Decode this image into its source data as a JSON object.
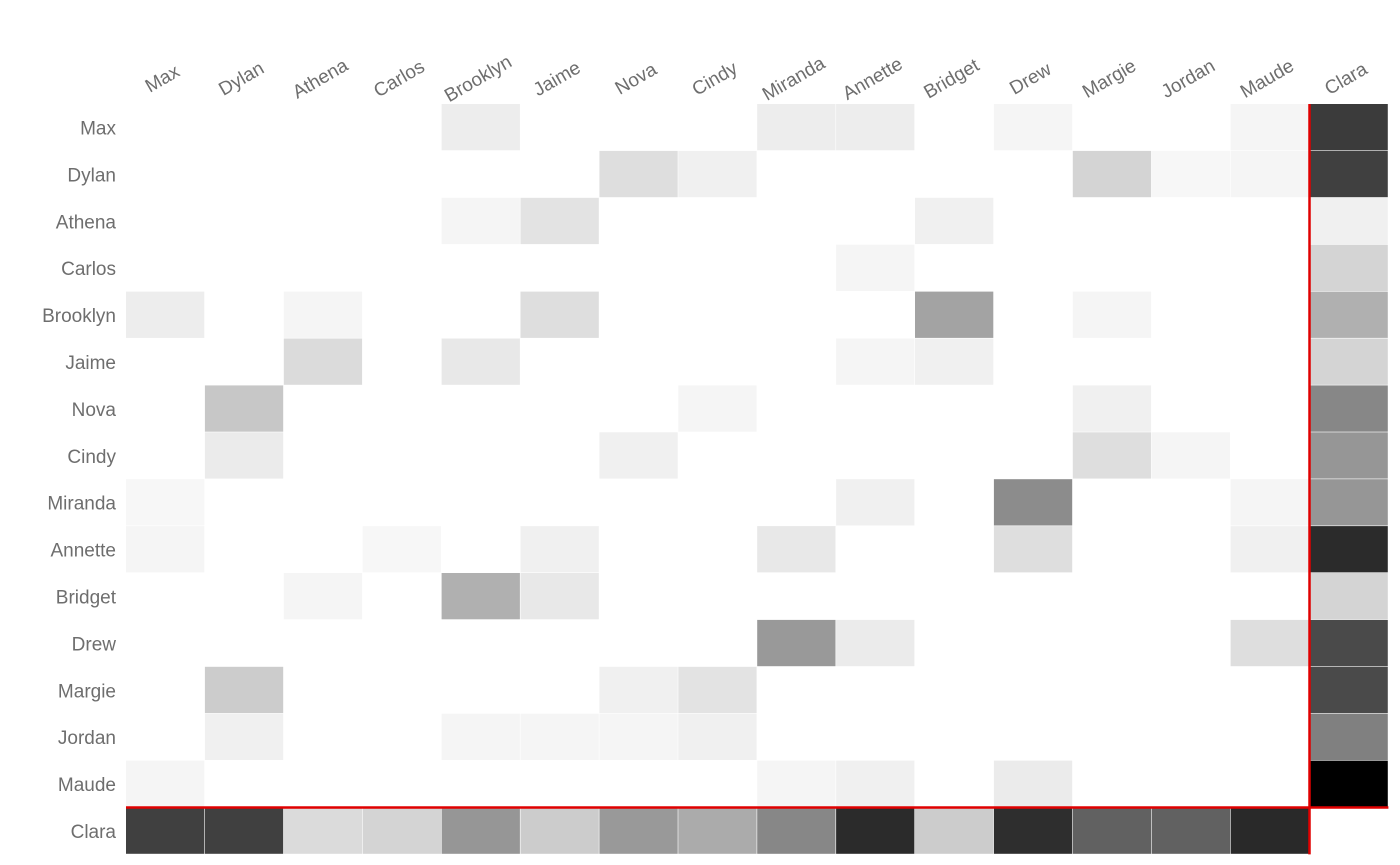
{
  "chart_data": {
    "type": "heatmap",
    "title": "",
    "xlabel": "",
    "ylabel": "",
    "x_labels": [
      "Max",
      "Dylan",
      "Athena",
      "Carlos",
      "Brooklyn",
      "Jaime",
      "Nova",
      "Cindy",
      "Miranda",
      "Annette",
      "Bridget",
      "Drew",
      "Margie",
      "Jordan",
      "Maude",
      "Clara"
    ],
    "y_labels": [
      "Max",
      "Dylan",
      "Athena",
      "Carlos",
      "Brooklyn",
      "Jaime",
      "Nova",
      "Cindy",
      "Miranda",
      "Annette",
      "Bridget",
      "Drew",
      "Margie",
      "Jordan",
      "Maude",
      "Clara"
    ],
    "value_range": [
      0,
      1
    ],
    "color_scale": {
      "low": "#ffffff",
      "high": "#000000"
    },
    "highlight": {
      "name": "Clara",
      "color": "#e00000"
    },
    "values": [
      [
        0,
        0,
        0,
        0,
        0.07,
        0,
        0,
        0,
        0.07,
        0.07,
        0,
        0.04,
        0,
        0,
        0.04,
        0.77
      ],
      [
        0,
        0,
        0,
        0,
        0,
        0,
        0.13,
        0.06,
        0,
        0,
        0,
        0,
        0.17,
        0.03,
        0.04,
        0.75
      ],
      [
        0,
        0,
        0,
        0,
        0.04,
        0.11,
        0,
        0,
        0,
        0,
        0.06,
        0,
        0,
        0,
        0,
        0.06
      ],
      [
        0,
        0,
        0,
        0,
        0,
        0,
        0,
        0,
        0,
        0.04,
        0,
        0,
        0,
        0,
        0,
        0.17
      ],
      [
        0.07,
        0,
        0.04,
        0,
        0,
        0.13,
        0,
        0,
        0,
        0,
        0.36,
        0,
        0.04,
        0,
        0,
        0.31
      ],
      [
        0,
        0,
        0.14,
        0,
        0.09,
        0,
        0,
        0,
        0,
        0.04,
        0.06,
        0,
        0,
        0,
        0,
        0.17
      ],
      [
        0,
        0.22,
        0,
        0,
        0,
        0,
        0,
        0.04,
        0,
        0,
        0,
        0,
        0.06,
        0,
        0,
        0.47
      ],
      [
        0,
        0.08,
        0,
        0,
        0,
        0,
        0.06,
        0,
        0,
        0,
        0,
        0,
        0.13,
        0.04,
        0,
        0.41
      ],
      [
        0.03,
        0,
        0,
        0,
        0,
        0,
        0,
        0,
        0,
        0.06,
        0,
        0.45,
        0,
        0,
        0.04,
        0.41
      ],
      [
        0.04,
        0,
        0,
        0.03,
        0,
        0.06,
        0,
        0,
        0.09,
        0,
        0,
        0.13,
        0,
        0,
        0.06,
        0.83
      ],
      [
        0,
        0,
        0.04,
        0,
        0.31,
        0.09,
        0,
        0,
        0,
        0,
        0,
        0,
        0,
        0,
        0,
        0.17
      ],
      [
        0,
        0,
        0,
        0,
        0,
        0,
        0,
        0,
        0.4,
        0.08,
        0,
        0,
        0,
        0,
        0.13,
        0.71
      ],
      [
        0,
        0.2,
        0,
        0,
        0,
        0,
        0.06,
        0.11,
        0,
        0,
        0,
        0,
        0,
        0,
        0,
        0.71
      ],
      [
        0,
        0.06,
        0,
        0,
        0.04,
        0.04,
        0.04,
        0.06,
        0,
        0,
        0,
        0,
        0,
        0,
        0,
        0.5
      ],
      [
        0.04,
        0,
        0,
        0,
        0,
        0,
        0,
        0,
        0.04,
        0.06,
        0,
        0.08,
        0,
        0,
        0,
        1.0
      ],
      [
        0.75,
        0.75,
        0.14,
        0.17,
        0.41,
        0.2,
        0.4,
        0.33,
        0.47,
        0.83,
        0.2,
        0.82,
        0.62,
        0.62,
        0.84,
        0
      ]
    ]
  }
}
